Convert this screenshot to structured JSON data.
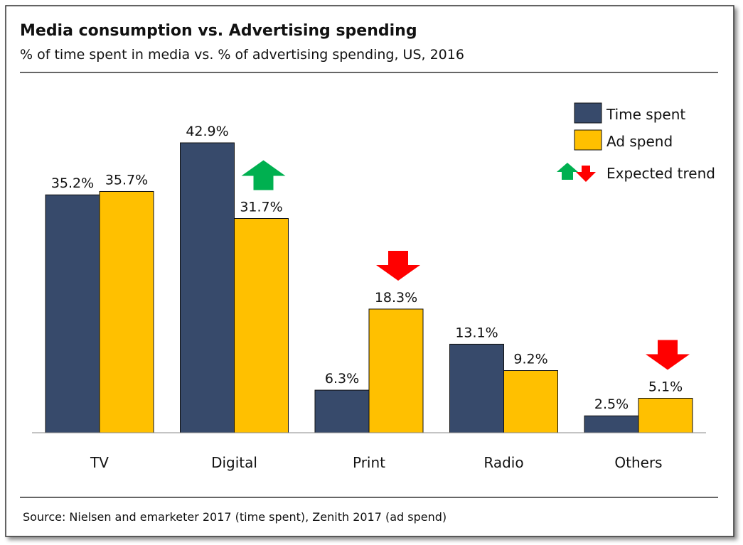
{
  "chart_data": {
    "type": "bar",
    "title": "Media consumption vs. Advertising spending",
    "subtitle": "% of time spent in media vs. % of advertising spending, US, 2016",
    "categories": [
      "TV",
      "Digital",
      "Print",
      "Radio",
      "Others"
    ],
    "series": [
      {
        "name": "Time spent",
        "values": [
          35.2,
          42.9,
          6.3,
          13.1,
          2.5
        ],
        "labels": [
          "35.2%",
          "42.9%",
          "6.3%",
          "13.1%",
          "2.5%"
        ],
        "color": "#374A6B"
      },
      {
        "name": "Ad spend",
        "values": [
          35.7,
          31.7,
          18.3,
          9.2,
          5.1
        ],
        "labels": [
          "35.7%",
          "31.7%",
          "18.3%",
          "9.2%",
          "5.1%"
        ],
        "color": "#FFC000"
      }
    ],
    "trend_arrows": [
      {
        "category": "Digital",
        "direction": "up",
        "color": "#00B050"
      },
      {
        "category": "Print",
        "direction": "down",
        "color": "#FF0000"
      },
      {
        "category": "Others",
        "direction": "down",
        "color": "#FF0000"
      }
    ],
    "legend": {
      "placement": "top-right",
      "items": [
        "Time spent",
        "Ad spend"
      ],
      "trend_label": "Expected trend"
    },
    "ylim": [
      0,
      45
    ],
    "grid": false,
    "source": "Source: Nielsen and emarketer 2017 (time spent), Zenith 2017 (ad spend)"
  }
}
